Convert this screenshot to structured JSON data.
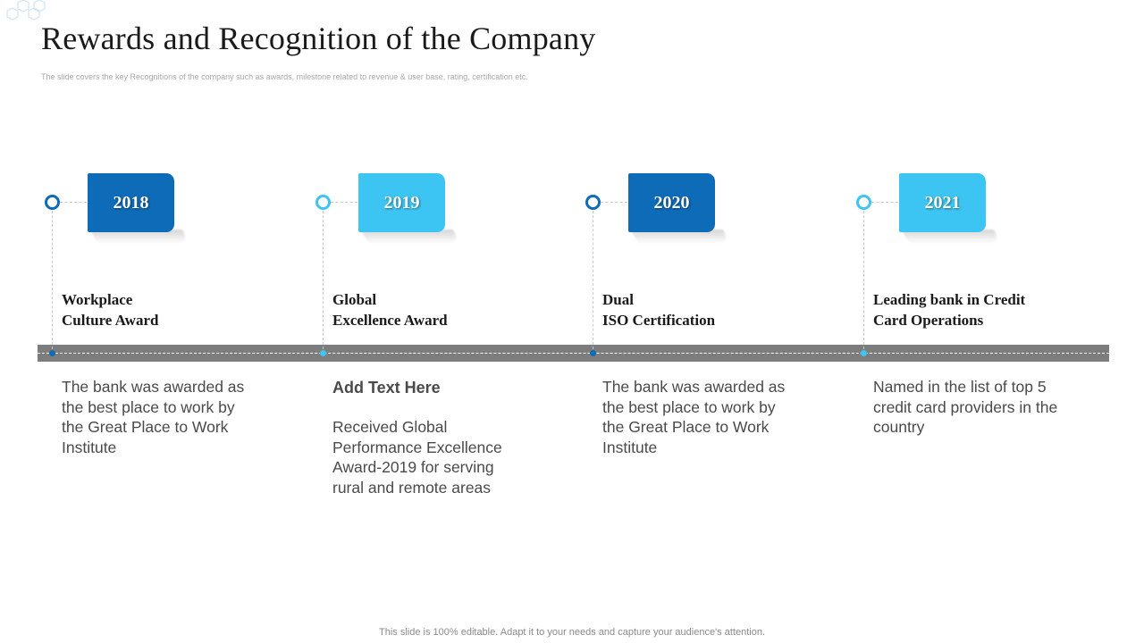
{
  "slide": {
    "title": "Rewards and Recognition of the Company",
    "subtitle": "The slide covers the key Recognitions of the company such as awards, milestone related to revenue & user base, rating, certification etc.",
    "footer": "This slide is 100% editable. Adapt it to your needs and capture your audience's attention."
  },
  "colors": {
    "dark_blue": "#0e6bb8",
    "light_blue": "#3cc4f2",
    "bar_gray": "#7d7d7d"
  },
  "milestones": [
    {
      "year": "2018",
      "title_line1": "Workplace",
      "title_line2": "Culture Award",
      "heading": "",
      "description": "The bank was awarded as the best place to work by the Great Place to Work Institute"
    },
    {
      "year": "2019",
      "title_line1": "Global",
      "title_line2": "Excellence Award",
      "heading": "Add Text Here",
      "description": "Received Global Performance Excellence Award-2019 for serving rural and remote areas"
    },
    {
      "year": "2020",
      "title_line1": "Dual",
      "title_line2": "ISO Certification",
      "heading": "",
      "description": "The bank was awarded as the best place to work by the Great Place to Work Institute"
    },
    {
      "year": "2021",
      "title_line1": "Leading bank in Credit",
      "title_line2": "Card Operations",
      "heading": "",
      "description": "Named in the list of top 5 credit card providers in the country"
    }
  ]
}
